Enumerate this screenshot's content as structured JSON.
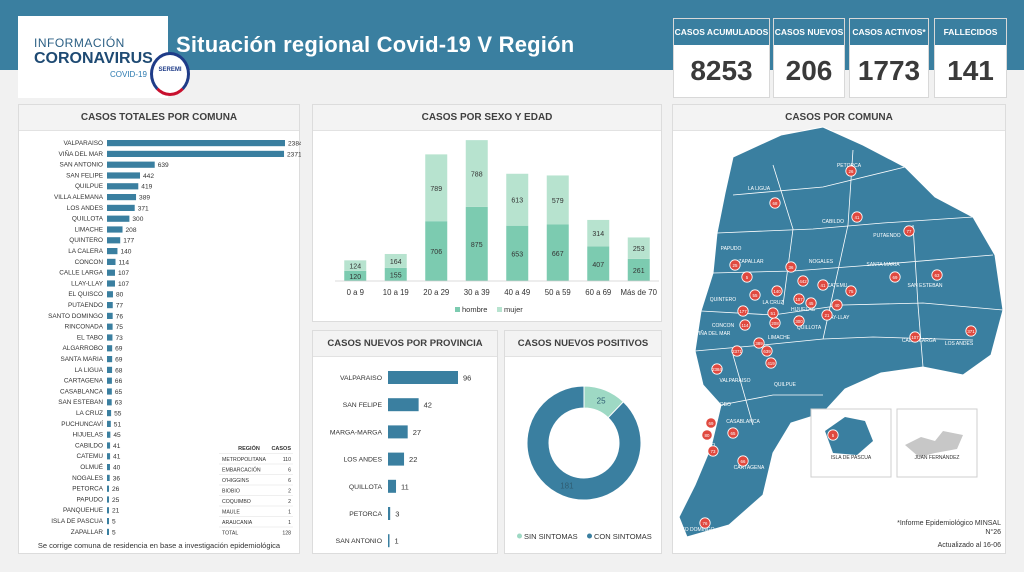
{
  "header": {
    "logo_line1": "INFORMACIÓN",
    "logo_line2": "CORONAVIRUS",
    "logo_line3": "COVID-19",
    "gov_label": "SEREMI",
    "title": "Situación regional Covid-19 V Región"
  },
  "kpis": [
    {
      "label": "CASOS ACUMULADOS",
      "value": "8253"
    },
    {
      "label": "CASOS NUEVOS",
      "value": "206"
    },
    {
      "label": "CASOS ACTIVOS*",
      "value": "1773"
    },
    {
      "label": "FALLECIDOS",
      "value": "141"
    }
  ],
  "panels": {
    "comuna_title": "CASOS TOTALES POR COMUNA",
    "sexo_title": "CASOS POR SEXO Y EDAD",
    "provincia_title": "CASOS NUEVOS  POR PROVINCIA",
    "positivos_title": "CASOS NUEVOS POSITIVOS",
    "map_title": "CASOS POR COMUNA",
    "comuna_footnote": "Se corrige comuna de residencia en base a investigación epidemiológica",
    "map_footnote": "*Informe Epidemiológico MINSAL N°26",
    "map_date": "Actualizado al 16-06",
    "map_islands": [
      "ISLA DE PASCUA",
      "JUAN FERNÁNDEZ"
    ]
  },
  "region_table": {
    "headers": [
      "REGIÓN",
      "CASOS"
    ],
    "rows": [
      [
        "METROPOLITANA",
        "110"
      ],
      [
        "EMBARCACIÓN",
        "6"
      ],
      [
        "O'HIGGINS",
        "6"
      ],
      [
        "BIOBIO",
        "2"
      ],
      [
        "COQUIMBO",
        "2"
      ],
      [
        "MAULE",
        "1"
      ],
      [
        "ARAUCANIA",
        "1"
      ],
      [
        "TOTAL",
        "128"
      ]
    ]
  },
  "chart_data": [
    {
      "type": "bar",
      "orientation": "horizontal",
      "title": "CASOS TOTALES POR COMUNA",
      "categories": [
        "VALPARAISO",
        "VIÑA DEL MAR",
        "SAN ANTONIO",
        "SAN FELIPE",
        "QUILPUE",
        "VILLA ALEMANA",
        "LOS ANDES",
        "QUILLOTA",
        "LIMACHE",
        "QUINTERO",
        "LA CALERA",
        "CONCON",
        "CALLE LARGA",
        "LLAY-LLAY",
        "EL QUISCO",
        "PUTAENDO",
        "SANTO DOMINGO",
        "RINCONADA",
        "EL TABO",
        "ALGARROBO",
        "SANTA MARIA",
        "LA LIGUA",
        "CARTAGENA",
        "CASABLANCA",
        "SAN ESTEBAN",
        "LA CRUZ",
        "PUCHUNCAVÍ",
        "HIJUELAS",
        "CABILDO",
        "CATEMU",
        "OLMUÉ",
        "NOGALES",
        "PETORCA",
        "PAPUDO",
        "PANQUEHUE",
        "ISLA DE PASCUA",
        "ZAPALLAR"
      ],
      "values": [
        2384,
        2371,
        639,
        442,
        419,
        389,
        371,
        300,
        208,
        177,
        140,
        114,
        107,
        107,
        80,
        77,
        76,
        75,
        73,
        69,
        69,
        68,
        66,
        65,
        63,
        55,
        51,
        45,
        41,
        41,
        40,
        36,
        26,
        25,
        21,
        5,
        5
      ],
      "color": "#3a7fa0"
    },
    {
      "type": "bar",
      "stacked": true,
      "title": "CASOS POR SEXO Y EDAD",
      "categories": [
        "0 a 9",
        "10 a 19",
        "20 a 29",
        "30 a 39",
        "40 a 49",
        "50 a 59",
        "60 a 69",
        "Más de 70"
      ],
      "series": [
        {
          "name": "hombre",
          "values": [
            120,
            155,
            706,
            875,
            653,
            667,
            407,
            261
          ],
          "color": "#7ccbb0"
        },
        {
          "name": "mujer",
          "values": [
            124,
            164,
            789,
            788,
            613,
            579,
            314,
            253
          ],
          "color": "#b7e3cf"
        }
      ],
      "legend": "bottom"
    },
    {
      "type": "bar",
      "orientation": "horizontal",
      "title": "CASOS NUEVOS  POR PROVINCIA",
      "categories": [
        "VALPARAISO",
        "SAN FELIPE",
        "MARGA-MARGA",
        "LOS ANDES",
        "QUILLOTA",
        "PETORCA",
        "SAN ANTONIO"
      ],
      "values": [
        96,
        42,
        27,
        22,
        11,
        3,
        1
      ],
      "color": "#3a7fa0"
    },
    {
      "type": "pie",
      "donut": true,
      "title": "CASOS NUEVOS POSITIVOS",
      "categories": [
        "SIN SINTOMAS",
        "CON SINTOMAS"
      ],
      "values": [
        25,
        181
      ],
      "colors": [
        "#9ed9c4",
        "#3a7fa0"
      ],
      "legend": "bottom"
    }
  ],
  "map": {
    "labels": [
      "PETORCA",
      "LA LIGUA",
      "CABILDO",
      "PUTAENDO",
      "PAPUDO",
      "ZAPALLAR",
      "NOGALES",
      "SANTA MARIA",
      "CATEMU",
      "SAN ESTEBAN",
      "QUINTERO",
      "LA CRUZ",
      "HIJUELAS",
      "LLAY-LLAY",
      "CONCON",
      "QUILLOTA",
      "VIÑA DEL MAR",
      "LIMACHE",
      "CALLE LARGA",
      "LOS ANDES",
      "VALPARAISO",
      "QUILPUE",
      "ALGARROBO",
      "CASABLANCA",
      "EL QUISCO",
      "EL TABO",
      "CARTAGENA",
      "SANTO DOMINGO"
    ],
    "markers": [
      "26",
      "68",
      "41",
      "77",
      "25",
      "5",
      "36",
      "69",
      "41",
      "63",
      "177",
      "55",
      "45",
      "107",
      "114",
      "300",
      "2371",
      "208",
      "107",
      "371",
      "2384",
      "419",
      "69",
      "65",
      "80",
      "73",
      "66",
      "76",
      "639",
      "442",
      "389",
      "140",
      "75",
      "21",
      "51",
      "5",
      "40"
    ]
  }
}
